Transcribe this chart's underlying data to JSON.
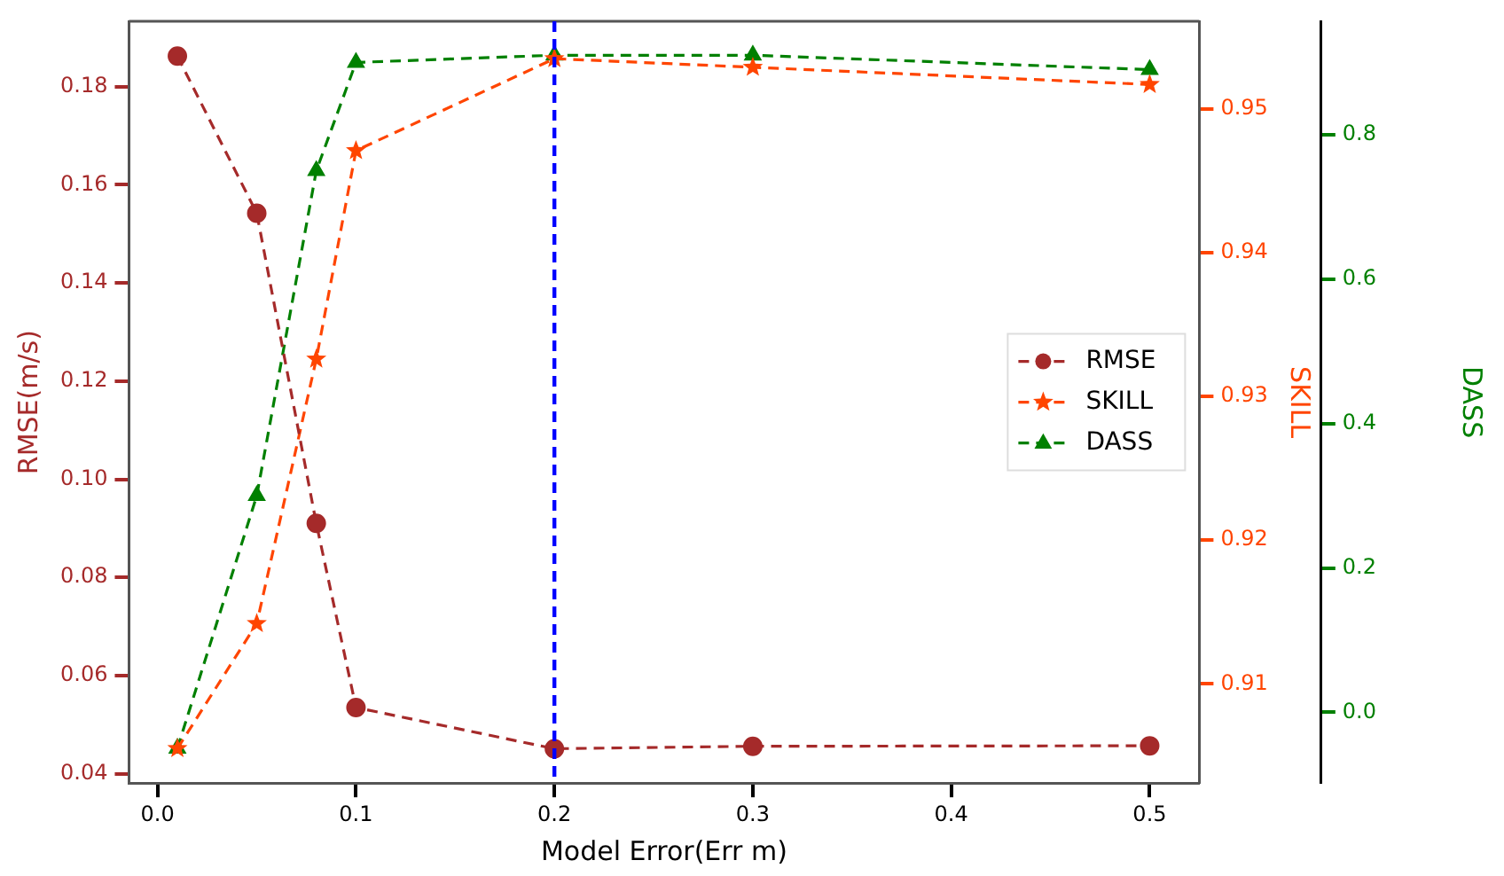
{
  "chart_data": {
    "type": "line",
    "xlabel": "Model Error(Err m)",
    "ylabel": "RMSE(m/s)",
    "y2label": "SKILL",
    "y3label": "DASS",
    "x": [
      0.01,
      0.05,
      0.08,
      0.1,
      0.2,
      0.3,
      0.5
    ],
    "xlim": [
      -0.0144,
      0.525
    ],
    "xticks": [
      {
        "value": 0,
        "label": "0.0"
      },
      0.1,
      0.2,
      0.3,
      0.4,
      0.5
    ],
    "ylim": [
      0.0381,
      0.1933
    ],
    "yticks": [
      0.04,
      0.06,
      0.08,
      {
        "value": 0.1,
        "label": "0.10"
      },
      0.12,
      0.14,
      0.16,
      0.18
    ],
    "y2lim": [
      0.9031,
      0.9561
    ],
    "y2ticks": [
      0.91,
      0.92,
      0.93,
      0.94,
      0.95
    ],
    "y3lim": [
      -0.098,
      0.957
    ],
    "y3ticks": [
      {
        "value": 0,
        "label": "0.0"
      },
      0.2,
      0.4,
      0.6,
      0.8
    ],
    "series": [
      {
        "name": "RMSE",
        "color": "#a52a2a",
        "marker": "circle",
        "values": [
          0.1862,
          0.1542,
          0.091,
          0.0535,
          0.0451,
          0.0456,
          0.0457
        ]
      },
      {
        "name": "SKILL",
        "color": "#ff4500",
        "marker": "star",
        "axis": "y2",
        "values": [
          0.9055,
          0.9142,
          0.9326,
          0.9471,
          0.9535,
          0.9529,
          0.9517
        ]
      },
      {
        "name": "DASS",
        "color": "#008000",
        "marker": "triangle",
        "axis": "y3",
        "values": [
          -0.05,
          0.3,
          0.75,
          0.9,
          0.91,
          0.91,
          0.89
        ]
      }
    ],
    "ref_lines": [
      {
        "axis": "x",
        "value": 0.2,
        "color": "#0000ff",
        "line_style": "dashed"
      }
    ],
    "line_style": "dashed",
    "grid": false,
    "legend": "right"
  }
}
